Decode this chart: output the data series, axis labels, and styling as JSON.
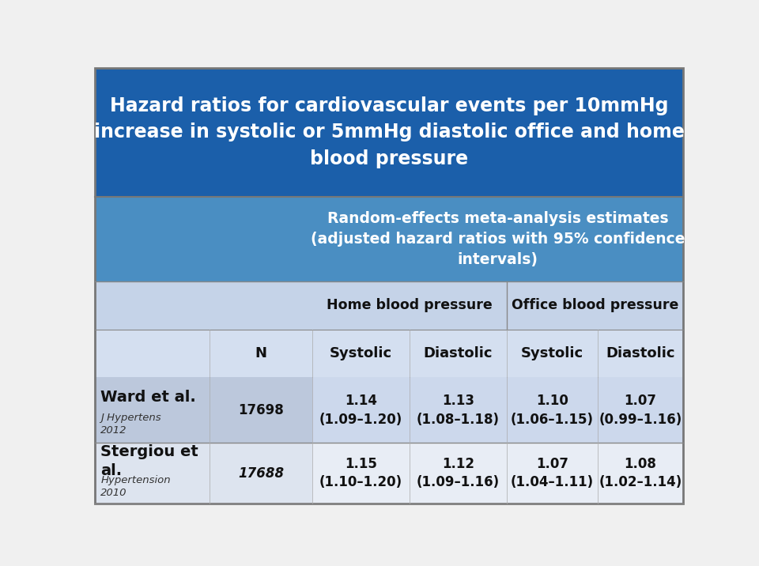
{
  "title": "Hazard ratios for cardiovascular events per 10mmHg\nincrease in systolic or 5mmHg diastolic office and home\nblood pressure",
  "title_bg": "#1b5faa",
  "title_color": "#ffffff",
  "subheader_text": "Random-effects meta-analysis estimates\n(adjusted hazard ratios with 95% confidence\nintervals)",
  "subheader_bg": "#4a8ec2",
  "subheader_color": "#ffffff",
  "col_header1_text": "Home blood pressure",
  "col_header2_text": "Office blood pressure",
  "col_header_bg": "#c5d3e8",
  "col_header_color": "#111111",
  "left_col_bg": "#b8c8de",
  "col_labels_bg": "#d4dff0",
  "col_labels_color": "#111111",
  "col_labels": [
    "N",
    "Systolic",
    "Diastolic",
    "Systolic",
    "Diastolic"
  ],
  "rows": [
    {
      "author": "Ward et al.",
      "journal": "J Hypertens\n2012",
      "n": "17698",
      "n_italic": false,
      "home_sys": "1.14\n(1.09–1.20)",
      "home_dia": "1.13\n(1.08–1.18)",
      "office_sys": "1.10\n(1.06–1.15)",
      "office_dia": "1.07\n(0.99–1.16)",
      "row_bg": "#ccd8ec",
      "left_bg": "#bcc8dc"
    },
    {
      "author": "Stergiou et\nal.",
      "journal": "Hypertension\n2010",
      "n": "17688",
      "n_italic": true,
      "home_sys": "1.15\n(1.10–1.20)",
      "home_dia": "1.12\n(1.09–1.16)",
      "office_sys": "1.07\n(1.04–1.11)",
      "office_dia": "1.08\n(1.02–1.14)",
      "row_bg": "#e8edf5",
      "left_bg": "#dde4ef"
    }
  ],
  "fig_bg": "#f0f0f0",
  "grid_color": "#aaaaaa"
}
